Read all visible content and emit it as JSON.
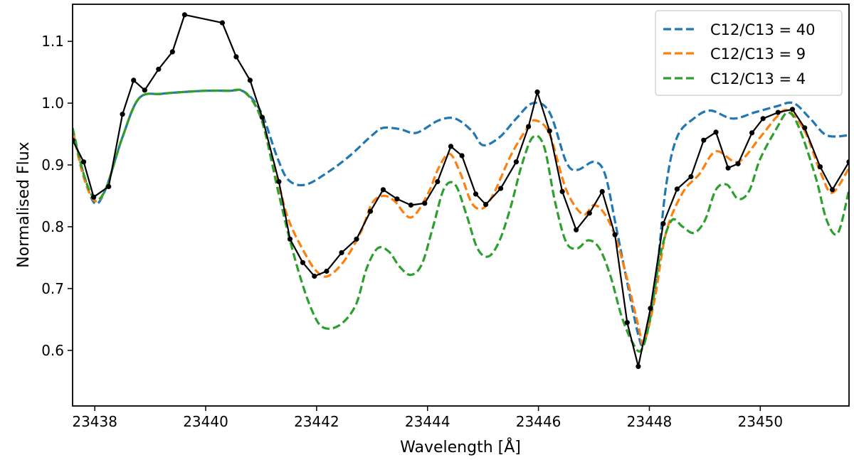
{
  "chart_data": {
    "type": "line",
    "title": "",
    "xlabel": "Wavelength [Å]",
    "ylabel": "Normalised Flux",
    "xlim": [
      23437.6,
      23451.6
    ],
    "ylim": [
      0.51,
      1.16
    ],
    "xticks": [
      23438,
      23440,
      23442,
      23444,
      23446,
      23448,
      23450
    ],
    "yticks": [
      0.6,
      0.7,
      0.8,
      0.9,
      1.0,
      1.1
    ],
    "xtick_labels": [
      "23438",
      "23440",
      "23442",
      "23444",
      "23446",
      "23448",
      "23450"
    ],
    "ytick_labels": [
      "0.6",
      "0.7",
      "0.8",
      "0.9",
      "1.0",
      "1.1"
    ],
    "grid": false,
    "legend_position": "top-right",
    "series": [
      {
        "name": "C12/C13 = 40",
        "style": "dashed",
        "color": "#1f77b4",
        "x": [
          23437.6,
          23437.8,
          23438.0,
          23438.2,
          23438.5,
          23438.8,
          23439.2,
          23439.6,
          23440.0,
          23440.4,
          23440.7,
          23441.0,
          23441.3,
          23441.5,
          23441.8,
          23442.2,
          23442.6,
          23443.0,
          23443.2,
          23443.5,
          23443.8,
          23444.2,
          23444.5,
          23444.8,
          23445.0,
          23445.3,
          23445.6,
          23445.9,
          23446.2,
          23446.5,
          23446.7,
          23447.0,
          23447.2,
          23447.4,
          23447.6,
          23447.8,
          23447.9,
          23448.1,
          23448.3,
          23448.5,
          23448.8,
          23449.1,
          23449.5,
          23449.9,
          23450.3,
          23450.6,
          23450.9,
          23451.2,
          23451.6
        ],
        "y": [
          0.955,
          0.885,
          0.838,
          0.862,
          0.945,
          1.008,
          1.015,
          1.018,
          1.02,
          1.02,
          1.018,
          0.985,
          0.91,
          0.875,
          0.868,
          0.888,
          0.915,
          0.948,
          0.96,
          0.958,
          0.952,
          0.972,
          0.975,
          0.955,
          0.932,
          0.945,
          0.975,
          1.0,
          0.985,
          0.905,
          0.892,
          0.905,
          0.885,
          0.8,
          0.71,
          0.625,
          0.615,
          0.7,
          0.865,
          0.945,
          0.975,
          0.988,
          0.975,
          0.985,
          0.995,
          1.0,
          0.975,
          0.948,
          0.948
        ]
      },
      {
        "name": "C12/C13 = 9",
        "style": "dashed",
        "color": "#ff7f0e",
        "x": [
          23437.6,
          23437.8,
          23438.0,
          23438.2,
          23438.5,
          23438.8,
          23439.2,
          23439.6,
          23440.0,
          23440.4,
          23440.7,
          23441.0,
          23441.3,
          23441.5,
          23441.8,
          23442.0,
          23442.2,
          23442.5,
          23442.8,
          23443.0,
          23443.2,
          23443.4,
          23443.7,
          23444.0,
          23444.2,
          23444.4,
          23444.6,
          23444.8,
          23445.0,
          23445.2,
          23445.5,
          23445.8,
          23445.95,
          23446.2,
          23446.5,
          23446.8,
          23447.0,
          23447.2,
          23447.4,
          23447.6,
          23447.8,
          23447.9,
          23448.1,
          23448.3,
          23448.6,
          23448.9,
          23449.2,
          23449.6,
          23450.0,
          23450.3,
          23450.5,
          23450.8,
          23451.1,
          23451.3,
          23451.6
        ],
        "y": [
          0.955,
          0.88,
          0.842,
          0.862,
          0.945,
          1.008,
          1.015,
          1.018,
          1.02,
          1.02,
          1.018,
          0.975,
          0.875,
          0.81,
          0.755,
          0.728,
          0.72,
          0.745,
          0.792,
          0.838,
          0.85,
          0.842,
          0.815,
          0.852,
          0.895,
          0.918,
          0.885,
          0.838,
          0.83,
          0.855,
          0.915,
          0.96,
          0.972,
          0.95,
          0.86,
          0.82,
          0.835,
          0.82,
          0.78,
          0.715,
          0.64,
          0.612,
          0.685,
          0.79,
          0.855,
          0.885,
          0.922,
          0.905,
          0.945,
          0.978,
          0.988,
          0.955,
          0.885,
          0.855,
          0.895
        ]
      },
      {
        "name": "C12/C13 = 4",
        "style": "dashed",
        "color": "#2ca02c",
        "x": [
          23437.6,
          23437.8,
          23438.0,
          23438.2,
          23438.5,
          23438.8,
          23439.2,
          23439.6,
          23440.0,
          23440.4,
          23440.7,
          23441.0,
          23441.3,
          23441.5,
          23441.7,
          23441.9,
          23442.1,
          23442.4,
          23442.7,
          23442.9,
          23443.1,
          23443.3,
          23443.5,
          23443.7,
          23443.9,
          23444.1,
          23444.3,
          23444.5,
          23444.7,
          23444.9,
          23445.1,
          23445.3,
          23445.5,
          23445.7,
          23445.9,
          23446.1,
          23446.3,
          23446.5,
          23446.7,
          23446.9,
          23447.1,
          23447.3,
          23447.5,
          23447.7,
          23447.85,
          23448.0,
          23448.2,
          23448.4,
          23448.6,
          23448.8,
          23449.0,
          23449.2,
          23449.4,
          23449.6,
          23449.8,
          23450.0,
          23450.3,
          23450.5,
          23450.7,
          23451.0,
          23451.2,
          23451.4,
          23451.6
        ],
        "y": [
          0.96,
          0.885,
          0.845,
          0.862,
          0.945,
          1.008,
          1.015,
          1.018,
          1.02,
          1.02,
          1.018,
          0.975,
          0.86,
          0.785,
          0.72,
          0.668,
          0.638,
          0.64,
          0.672,
          0.732,
          0.765,
          0.76,
          0.735,
          0.722,
          0.74,
          0.8,
          0.862,
          0.868,
          0.82,
          0.765,
          0.752,
          0.778,
          0.832,
          0.9,
          0.945,
          0.93,
          0.84,
          0.775,
          0.765,
          0.778,
          0.765,
          0.72,
          0.655,
          0.612,
          0.6,
          0.645,
          0.755,
          0.81,
          0.8,
          0.79,
          0.81,
          0.86,
          0.868,
          0.845,
          0.858,
          0.91,
          0.96,
          0.985,
          0.96,
          0.88,
          0.81,
          0.79,
          0.86
        ]
      },
      {
        "name": "",
        "style": "solid-markers",
        "color": "#000000",
        "x": [
          23437.6,
          23437.8,
          23437.98,
          23438.25,
          23438.5,
          23438.7,
          23438.9,
          23439.15,
          23439.4,
          23439.62,
          23440.3,
          23440.55,
          23440.8,
          23441.02,
          23441.32,
          23441.52,
          23441.75,
          23441.96,
          23442.18,
          23442.45,
          23442.72,
          23442.97,
          23443.2,
          23443.45,
          23443.7,
          23443.95,
          23444.18,
          23444.42,
          23444.62,
          23444.87,
          23445.05,
          23445.32,
          23445.6,
          23445.82,
          23445.98,
          23446.2,
          23446.43,
          23446.68,
          23446.92,
          23447.15,
          23447.38,
          23447.6,
          23447.8,
          23448.02,
          23448.25,
          23448.5,
          23448.75,
          23448.98,
          23449.2,
          23449.42,
          23449.6,
          23449.85,
          23450.05,
          23450.32,
          23450.58,
          23450.8,
          23451.08,
          23451.3,
          23451.6
        ],
        "y": [
          0.94,
          0.905,
          0.848,
          0.865,
          0.982,
          1.037,
          1.021,
          1.055,
          1.083,
          1.143,
          1.13,
          1.075,
          1.037,
          0.977,
          0.873,
          0.78,
          0.742,
          0.72,
          0.728,
          0.758,
          0.78,
          0.825,
          0.86,
          0.845,
          0.835,
          0.838,
          0.873,
          0.93,
          0.915,
          0.853,
          0.836,
          0.862,
          0.905,
          0.962,
          1.018,
          0.955,
          0.857,
          0.795,
          0.822,
          0.857,
          0.787,
          0.645,
          0.574,
          0.668,
          0.805,
          0.861,
          0.881,
          0.94,
          0.953,
          0.895,
          0.902,
          0.952,
          0.975,
          0.985,
          0.99,
          0.96,
          0.897,
          0.86,
          0.905
        ]
      }
    ]
  }
}
